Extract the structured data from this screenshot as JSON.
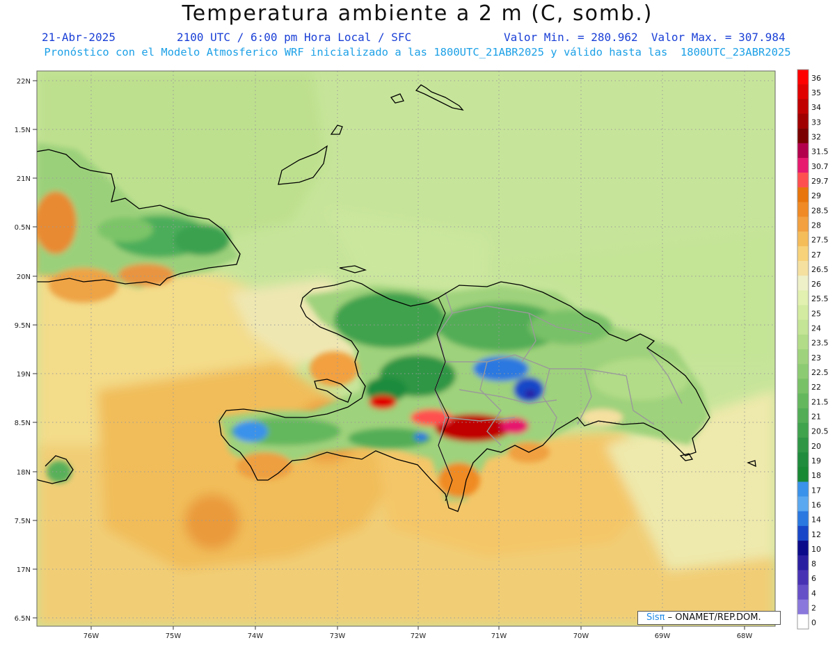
{
  "title": "Temperatura ambiente a 2 m (C, somb.)",
  "header": {
    "date": "21-Abr-2025",
    "time": "2100 UTC / 6:00 pm Hora Local / SFC",
    "minmax": "Valor Min. = 280.962  Valor Max. = 307.984",
    "subtitle": "Pronóstico con el Modelo Atmosferico WRF inicializado a las 1800UTC_21ABR2025 y válido hasta las  1800UTC_23ABR2025"
  },
  "axes": {
    "lat_labels": [
      "22N",
      "1.5N",
      "21N",
      "0.5N",
      "20N",
      "9.5N",
      "19N",
      "8.5N",
      "18N",
      "7.5N",
      "17N",
      "6.5N"
    ],
    "lon_labels": [
      "76W",
      "75W",
      "74W",
      "73W",
      "72W",
      "71W",
      "70W",
      "69W",
      "68W"
    ]
  },
  "colorbar": {
    "labels": [
      "36",
      "35",
      "34",
      "33",
      "32",
      "31.5",
      "30.7",
      "29.7",
      "29",
      "28.5",
      "28",
      "27.5",
      "27",
      "26.5",
      "26",
      "25.5",
      "25",
      "24",
      "23.5",
      "23",
      "22.5",
      "22",
      "21.5",
      "21",
      "20.5",
      "20",
      "19",
      "18",
      "17",
      "16",
      "14",
      "12",
      "10",
      "8",
      "6",
      "4",
      "2",
      "0"
    ],
    "colors": [
      "#ff0000",
      "#e00000",
      "#c00000",
      "#a00000",
      "#7a0000",
      "#b3004c",
      "#e6196e",
      "#ff5050",
      "#e8750b",
      "#f08a24",
      "#f2a040",
      "#f5bc5a",
      "#f7d27a",
      "#f5e0a0",
      "#eef0c8",
      "#e2f0b0",
      "#d2ebA0",
      "#c4e496",
      "#b2dc88",
      "#9fd27c",
      "#8dcb72",
      "#79c167",
      "#64b75d",
      "#52ad56",
      "#3fa24d",
      "#2e9645",
      "#1f8b3c",
      "#178834",
      "#3a92ea",
      "#5aa8f0",
      "#2a78e0",
      "#1846c8",
      "#0a0a8a",
      "#2a1ea0",
      "#4832b4",
      "#6650c8",
      "#8a78dc",
      "#ffffff"
    ]
  },
  "credit": {
    "sis": "Sisπ",
    "text": " – ONAMET/REP.DOM."
  }
}
